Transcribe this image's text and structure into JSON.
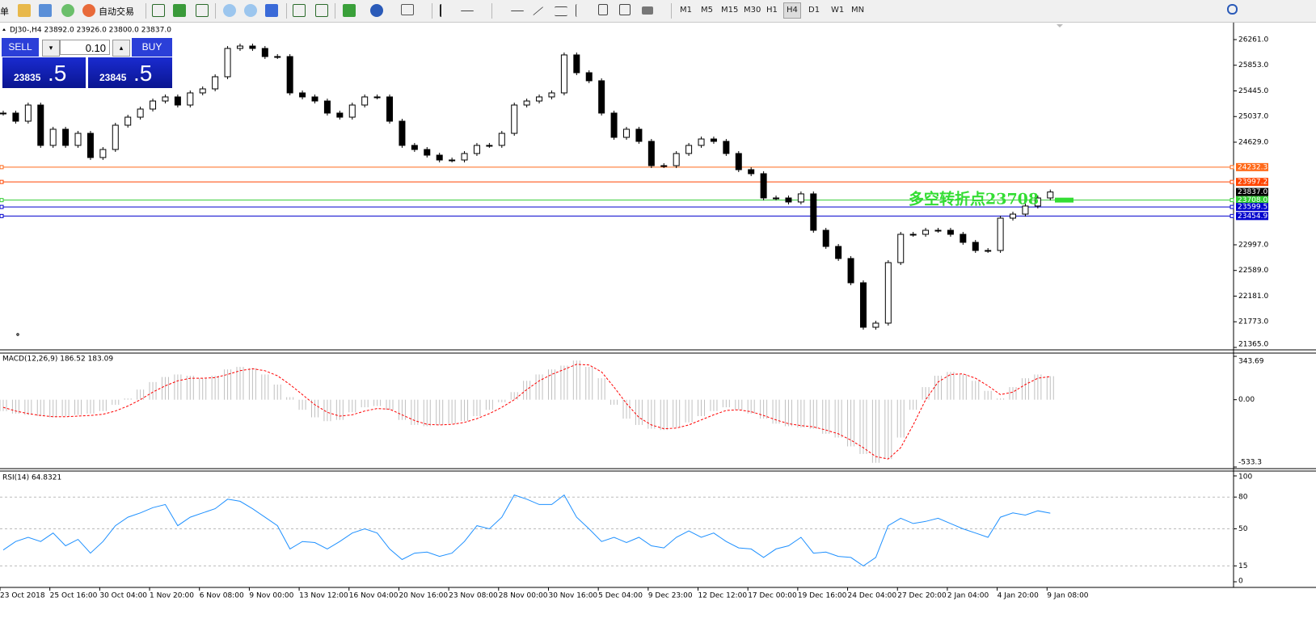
{
  "toolbar": {
    "menu": "单",
    "auto_trading": "自动交易",
    "timeframes": [
      "M1",
      "M5",
      "M15",
      "M30",
      "H1",
      "H4",
      "D1",
      "W1",
      "MN"
    ],
    "active_timeframe": "H4"
  },
  "trade_panel": {
    "sell": "SELL",
    "buy": "BUY",
    "lot": "0.10",
    "bid_main": "23835",
    "bid_pips": ".5",
    "ask_main": "23845",
    "ask_pips": ".5"
  },
  "chart_data": [
    {
      "type": "candlestick",
      "title": "DJ30-,H4  23892.0 23926.0 23800.0 23837.0",
      "categories": [
        "23 Oct 2018",
        null,
        null,
        null,
        "25 Oct 16:00",
        null,
        null,
        null,
        "30 Oct 04:00",
        null,
        null,
        null,
        "1 Nov 20:00",
        null,
        null,
        null,
        "6 Nov 08:00",
        null,
        null,
        null,
        "9 Nov 00:00",
        null,
        null,
        null,
        "13 Nov 12:00",
        null,
        null,
        null,
        "16 Nov 04:00",
        null,
        null,
        null,
        "20 Nov 16:00",
        null,
        null,
        null,
        "23 Nov 08:00",
        null,
        null,
        null,
        "28 Nov 00:00",
        null,
        null,
        null,
        "30 Nov 16:00",
        null,
        null,
        null,
        "5 Dec 04:00",
        null,
        null,
        null,
        "9 Dec 23:00",
        null,
        null,
        null,
        "12 Dec 12:00",
        null,
        null,
        null,
        "17 Dec 00:00",
        null,
        null,
        null,
        "19 Dec 16:00",
        null,
        null,
        null,
        "24 Dec 04:00",
        null,
        null,
        null,
        "27 Dec 20:00",
        null,
        null,
        null,
        "2 Jan 04:00",
        null,
        null,
        null,
        "4 Jan 20:00",
        null,
        null,
        null,
        "9 Jan 08:00"
      ],
      "values": [
        25092,
        24963,
        25220,
        24578,
        24835,
        24578,
        24770,
        24385,
        24513,
        24899,
        25027,
        25156,
        25284,
        25349,
        25220,
        25413,
        25477,
        25670,
        26120,
        26158,
        26120,
        25991,
        25991,
        25413,
        25349,
        25284,
        25092,
        25027,
        25220,
        25349,
        25349,
        24963,
        24578,
        24513,
        24423,
        24346,
        24346,
        24449,
        24578,
        24578,
        24770,
        25220,
        25284,
        25349,
        25413,
        26017,
        25734,
        25606,
        25092,
        24706,
        24835,
        24642,
        24256,
        24256,
        24449,
        24578,
        24680,
        24642,
        24449,
        24192,
        24128,
        23742,
        23742,
        23678,
        23807,
        23228,
        22971,
        22779,
        22393,
        21686,
        21751,
        22714,
        23164,
        23164,
        23228,
        23228,
        23164,
        23036,
        22907,
        22907,
        23421,
        23485,
        23614,
        23742,
        23837
      ],
      "up_color": "#ffffff",
      "down_color": "#000000",
      "ylim": [
        21339,
        26505
      ],
      "yticks": [
        {
          "value": 21365,
          "label": "21365.0"
        },
        {
          "value": 21773,
          "label": "21773.0"
        },
        {
          "value": 22181,
          "label": "22181.0"
        },
        {
          "value": 22589,
          "label": "22589.0"
        },
        {
          "value": 22997,
          "label": "22997.0"
        },
        {
          "value": 24629,
          "label": "24629.0"
        },
        {
          "value": 25037,
          "label": "25037.0"
        },
        {
          "value": 25445,
          "label": "25445.0"
        },
        {
          "value": 25853,
          "label": "25853.0"
        },
        {
          "value": 26261,
          "label": "26261.0"
        }
      ],
      "levels": [
        {
          "value": 24232.3,
          "label": "24232.3",
          "color": "#ff6a1a"
        },
        {
          "value": 23997.2,
          "label": "23997.2",
          "color": "#ff4500"
        },
        {
          "value": 23708.0,
          "label": "23708.0",
          "color": "#32cd32"
        },
        {
          "value": 23599.5,
          "label": "23599.5",
          "color": "#0000cd"
        },
        {
          "value": 23454.9,
          "label": "23454.9",
          "color": "#0000cd"
        }
      ],
      "price_label": {
        "value": 23837.0,
        "label": "23837.0"
      },
      "annotation": "多空转折点23708",
      "annotation_color": "#33dd33"
    },
    {
      "type": "macd",
      "title": "MACD(12,26,9) 186.52 183.09",
      "series": [
        {
          "style": "bar",
          "color": "#c0c0c0",
          "values": [
            -90,
            -110,
            -120,
            -130,
            -140,
            -130,
            -120,
            -110,
            -90,
            -40,
            10,
            80,
            140,
            180,
            200,
            190,
            170,
            190,
            240,
            260,
            250,
            200,
            120,
            20,
            -80,
            -140,
            -170,
            -160,
            -100,
            -60,
            -50,
            -80,
            -160,
            -200,
            -210,
            -200,
            -190,
            -170,
            -130,
            -80,
            -20,
            60,
            150,
            200,
            240,
            270,
            310,
            260,
            170,
            -40,
            -150,
            -200,
            -230,
            -240,
            -220,
            -180,
            -130,
            -90,
            -60,
            -80,
            -110,
            -150,
            -190,
            -210,
            -220,
            -230,
            -270,
            -300,
            -370,
            -430,
            -500,
            -470,
            -300,
            -80,
            100,
            190,
            220,
            200,
            150,
            70,
            10,
            100,
            170,
            200,
            186.52
          ]
        },
        {
          "style": "dashed",
          "color": "#ff0000",
          "values": [
            -60,
            -90,
            -110,
            -125,
            -135,
            -135,
            -130,
            -125,
            -115,
            -90,
            -50,
            0,
            60,
            110,
            150,
            170,
            170,
            175,
            200,
            230,
            245,
            230,
            190,
            120,
            40,
            -40,
            -100,
            -130,
            -120,
            -90,
            -70,
            -75,
            -120,
            -165,
            -195,
            -200,
            -195,
            -180,
            -150,
            -110,
            -60,
            0,
            80,
            150,
            200,
            240,
            280,
            275,
            220,
            100,
            -30,
            -140,
            -200,
            -230,
            -225,
            -200,
            -160,
            -120,
            -85,
            -80,
            -95,
            -125,
            -160,
            -190,
            -205,
            -215,
            -240,
            -270,
            -320,
            -380,
            -450,
            -470,
            -380,
            -200,
            0,
            140,
            200,
            205,
            170,
            110,
            40,
            60,
            120,
            170,
            183.09
          ]
        }
      ],
      "ylim": [
        -533.3,
        343.69
      ],
      "yticks": [
        -533.3,
        {
          "value": 0,
          "label": "0.00"
        },
        343.69
      ]
    },
    {
      "type": "line",
      "title": "RSI(14) 64.8321",
      "color": "#1e90ff",
      "values": [
        30,
        38,
        42,
        38,
        46,
        34,
        40,
        27,
        38,
        53,
        61,
        65,
        70,
        73,
        53,
        61,
        65,
        69,
        78,
        76,
        69,
        61,
        53,
        31,
        38,
        37,
        31,
        38,
        46,
        50,
        46,
        31,
        21,
        27,
        28,
        24,
        27,
        38,
        53,
        50,
        61,
        82,
        78,
        73,
        73,
        82,
        61,
        50,
        38,
        42,
        37,
        42,
        34,
        32,
        42,
        48,
        42,
        46,
        38,
        32,
        31,
        23,
        31,
        34,
        42,
        27,
        28,
        24,
        23,
        15,
        23,
        53,
        60,
        55,
        57,
        60,
        55,
        50,
        46,
        42,
        61,
        65,
        63,
        67,
        64.8321
      ],
      "ylim": [
        -3.8,
        103.8
      ],
      "yticks": [
        0,
        15,
        50,
        80,
        100
      ],
      "levels": [
        15,
        50,
        80
      ]
    }
  ]
}
